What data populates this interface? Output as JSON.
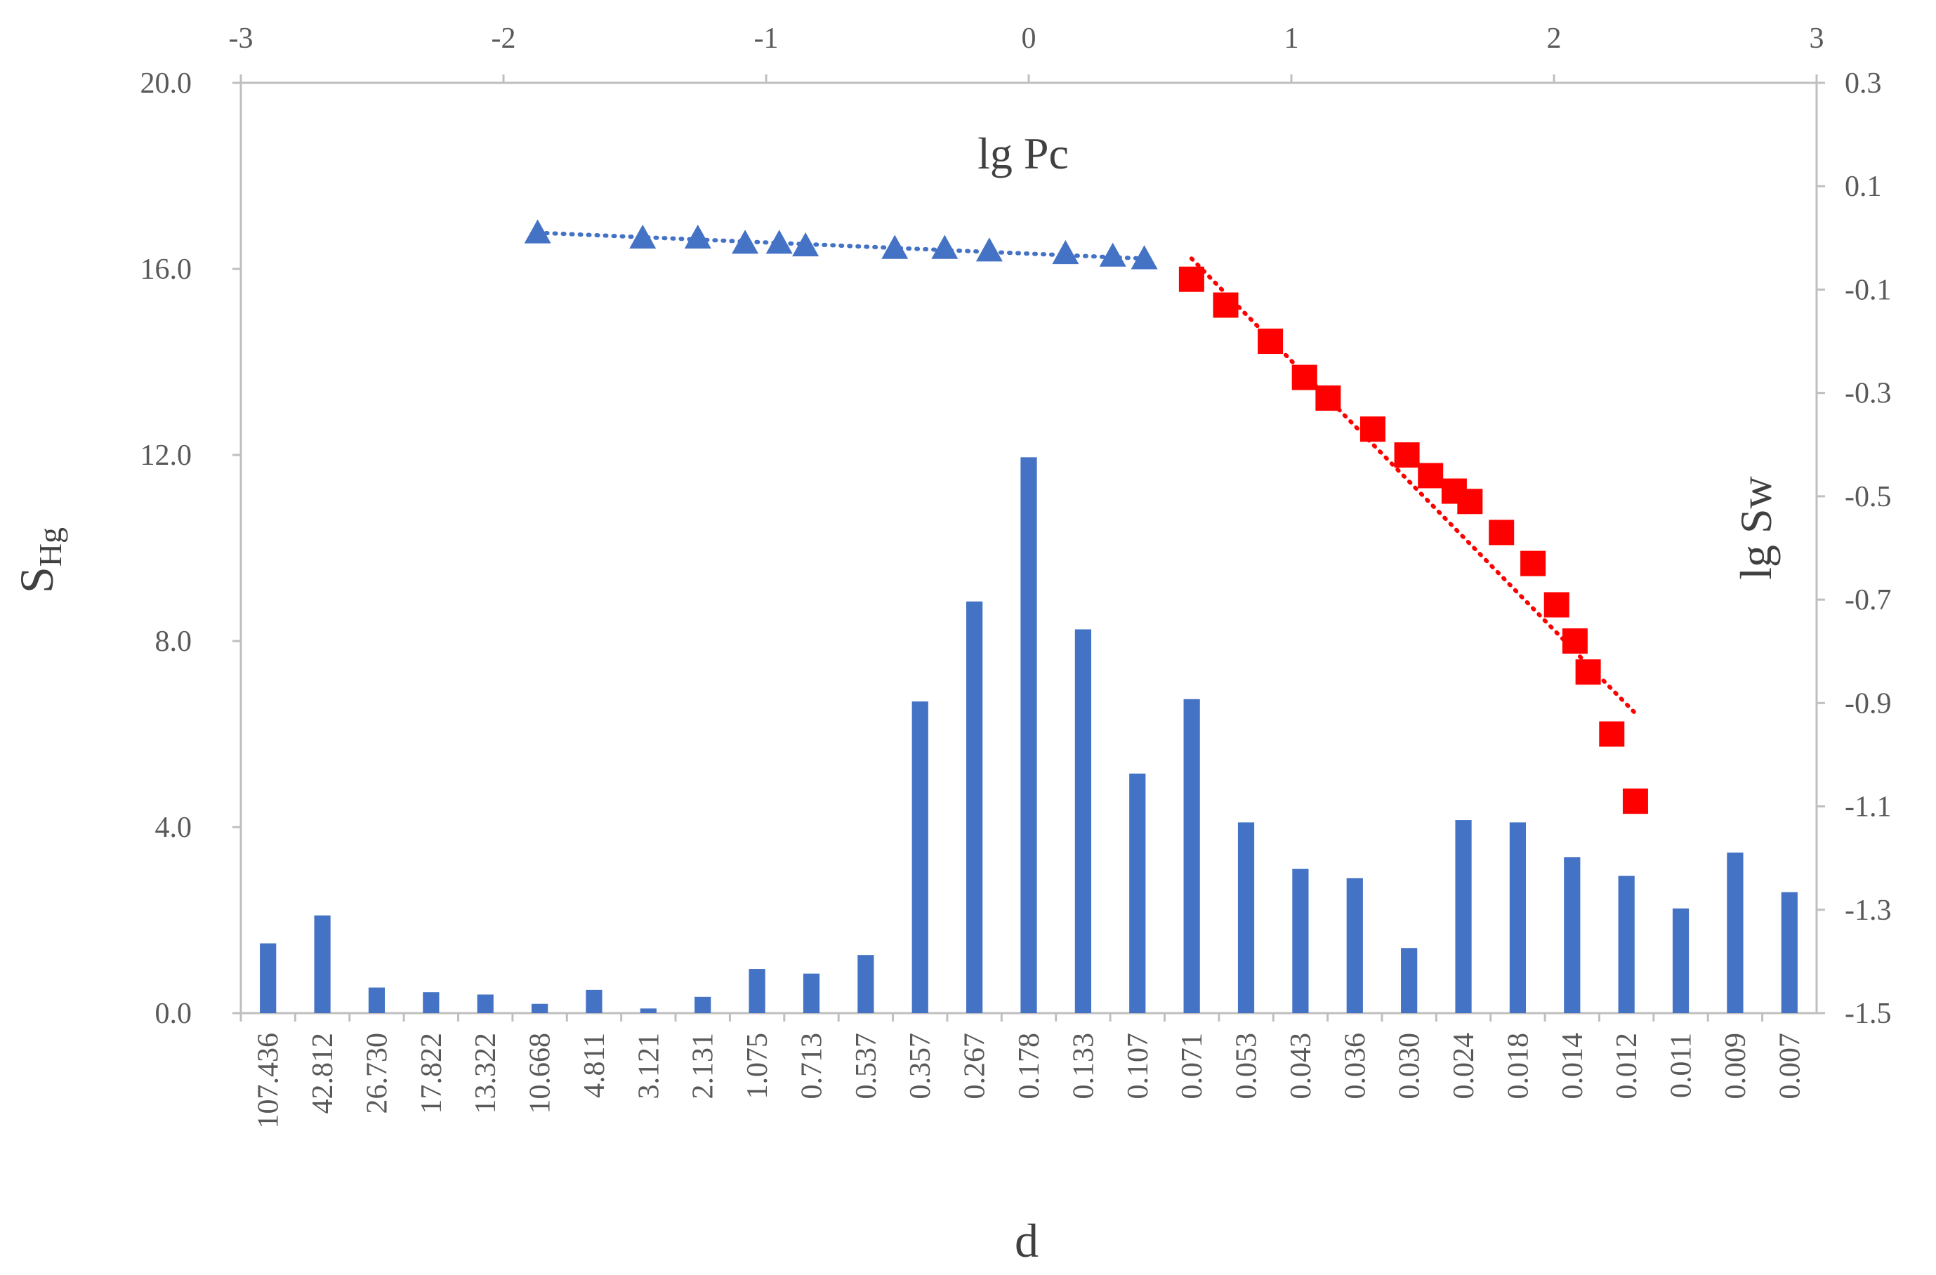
{
  "chart_data": {
    "type": "bar",
    "categories": [
      "107.436",
      "42.812",
      "26.730",
      "17.822",
      "13.322",
      "10.668",
      "4.811",
      "3.121",
      "2.131",
      "1.075",
      "0.713",
      "0.537",
      "0.357",
      "0.267",
      "0.178",
      "0.133",
      "0.107",
      "0.071",
      "0.053",
      "0.043",
      "0.036",
      "0.030",
      "0.024",
      "0.018",
      "0.014",
      "0.012",
      "0.011",
      "0.009",
      "0.007"
    ],
    "values": [
      1.5,
      2.1,
      0.55,
      0.45,
      0.4,
      0.2,
      0.5,
      0.1,
      0.35,
      0.95,
      0.85,
      1.25,
      6.7,
      8.85,
      11.95,
      8.25,
      5.15,
      6.75,
      4.1,
      3.1,
      2.9,
      1.4,
      4.15,
      4.1,
      3.35,
      2.95,
      2.25,
      3.45,
      2.6
    ],
    "xlabel": "d",
    "ylabel": "S",
    "ylabel_sub": "Hg",
    "ylim": [
      0,
      20
    ],
    "yticks": [
      "0.0",
      "4.0",
      "8.0",
      "12.0",
      "16.0",
      "20.0"
    ],
    "bar_color": "#4472c4",
    "secondary": {
      "xlabel": "lg Pc",
      "ylabel": "lg Sw",
      "xlim": [
        -3,
        3
      ],
      "ylim": [
        -1.5,
        0.3
      ],
      "xticks": [
        "-3",
        "-2",
        "-1",
        "0",
        "1",
        "2",
        "3"
      ],
      "yticks": [
        "-1.5",
        "-1.3",
        "-1.1",
        "-0.9",
        "-0.7",
        "-0.5",
        "-0.3",
        "-0.1",
        "0.1",
        "0.3"
      ],
      "series": [
        {
          "name": "triangles",
          "marker": "triangle",
          "color": "#4472c4",
          "x": [
            -1.87,
            -1.47,
            -1.26,
            -1.08,
            -0.95,
            -0.85,
            -0.51,
            -0.32,
            -0.15,
            0.14,
            0.32,
            0.44
          ],
          "y": [
            0.01,
            0.0,
            0.0,
            -0.01,
            -0.01,
            -0.015,
            -0.02,
            -0.02,
            -0.025,
            -0.03,
            -0.035,
            -0.04
          ]
        },
        {
          "name": "squares",
          "marker": "square",
          "color": "#ff0000",
          "x": [
            0.62,
            0.75,
            0.92,
            1.05,
            1.14,
            1.31,
            1.44,
            1.53,
            1.62,
            1.68,
            1.8,
            1.92,
            2.01,
            2.08,
            2.13,
            2.22,
            2.31
          ],
          "y": [
            -0.08,
            -0.13,
            -0.2,
            -0.27,
            -0.31,
            -0.37,
            -0.42,
            -0.46,
            -0.49,
            -0.51,
            -0.57,
            -0.63,
            -0.71,
            -0.78,
            -0.84,
            -0.96,
            -1.09
          ]
        }
      ],
      "trendlines": [
        {
          "name": "triangle-trend",
          "color": "#4472c4",
          "x": [
            -1.87,
            0.44
          ],
          "y": [
            0.01,
            -0.04
          ]
        },
        {
          "name": "square-trend",
          "color": "#ff0000",
          "x": [
            0.62,
            2.31
          ],
          "y": [
            -0.04,
            -0.92
          ]
        }
      ]
    }
  }
}
